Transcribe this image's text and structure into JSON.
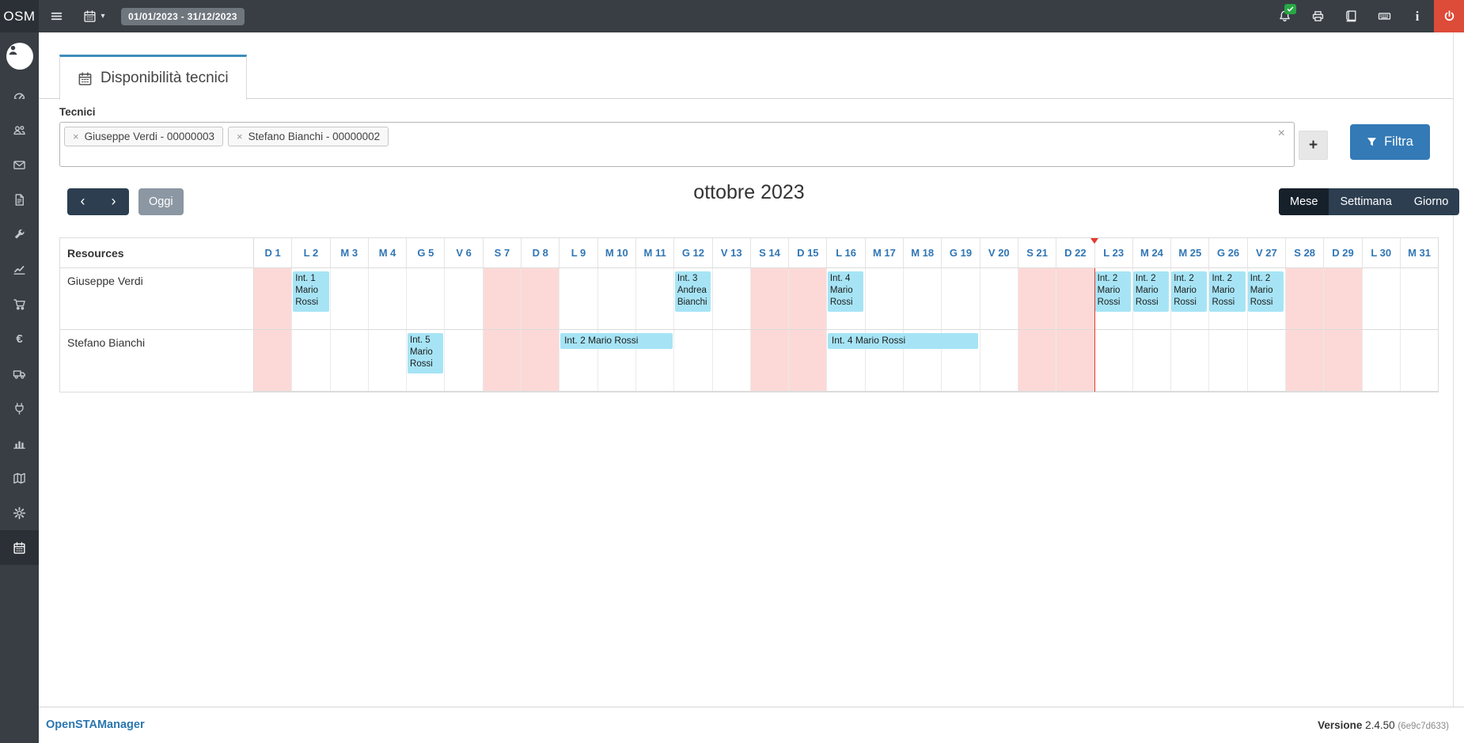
{
  "colors": {
    "navbar": "#383e44",
    "navbar_dark": "#2b3036",
    "accent": "#3c8dbc",
    "event": "#a6e4f5",
    "weekend": "#fcd9d7",
    "today": "#e23b2e",
    "logout": "#dd4b39",
    "badge_green": "#28a745"
  },
  "topbar": {
    "logo": "OSM",
    "date_range": "01/01/2023 - 31/12/2023",
    "right_icons": [
      "bell-icon",
      "print-icon",
      "book-icon",
      "keyboard-icon",
      "info-icon"
    ],
    "notification_badge": "check"
  },
  "sidebar": {
    "items": [
      {
        "id": "dashboard",
        "icon": "dashboard-icon"
      },
      {
        "id": "anagrafiche",
        "icon": "users-icon"
      },
      {
        "id": "email",
        "icon": "envelope-icon"
      },
      {
        "id": "documenti",
        "icon": "file-icon"
      },
      {
        "id": "interventi",
        "icon": "wrench-icon"
      },
      {
        "id": "andamento",
        "icon": "chart-line-icon"
      },
      {
        "id": "ordini",
        "icon": "cart-icon"
      },
      {
        "id": "fatture",
        "icon": "euro-icon"
      },
      {
        "id": "ddt",
        "icon": "truck-icon"
      },
      {
        "id": "impianti",
        "icon": "plug-icon"
      },
      {
        "id": "statistiche",
        "icon": "bar-chart-icon"
      },
      {
        "id": "mappa",
        "icon": "map-icon"
      },
      {
        "id": "impostazioni",
        "icon": "gear-icon"
      },
      {
        "id": "disponibilita",
        "icon": "calendar-icon",
        "active": true
      }
    ]
  },
  "tab": {
    "title": "Disponibilità tecnici"
  },
  "filter": {
    "label": "Tecnici",
    "tags": [
      "Giuseppe Verdi - 00000003",
      "Stefano Bianchi - 00000002"
    ],
    "tag_remove": "×",
    "clear": "×",
    "add_label": "+",
    "filter_label": "Filtra"
  },
  "toolbar": {
    "prev": "‹",
    "next": "›",
    "today_label": "Oggi",
    "title": "ottobre 2023",
    "views": [
      {
        "label": "Mese",
        "active": true
      },
      {
        "label": "Settimana",
        "active": false
      },
      {
        "label": "Giorno",
        "active": false
      }
    ]
  },
  "calendar": {
    "resources_header": "Resources",
    "today_index": 22,
    "days": [
      {
        "label": "D 1",
        "weekend": true
      },
      {
        "label": "L 2",
        "weekend": false
      },
      {
        "label": "M 3",
        "weekend": false
      },
      {
        "label": "M 4",
        "weekend": false
      },
      {
        "label": "G 5",
        "weekend": false
      },
      {
        "label": "V 6",
        "weekend": false
      },
      {
        "label": "S 7",
        "weekend": true
      },
      {
        "label": "D 8",
        "weekend": true
      },
      {
        "label": "L 9",
        "weekend": false
      },
      {
        "label": "M 10",
        "weekend": false
      },
      {
        "label": "M 11",
        "weekend": false
      },
      {
        "label": "G 12",
        "weekend": false
      },
      {
        "label": "V 13",
        "weekend": false
      },
      {
        "label": "S 14",
        "weekend": true
      },
      {
        "label": "D 15",
        "weekend": true
      },
      {
        "label": "L 16",
        "weekend": false
      },
      {
        "label": "M 17",
        "weekend": false
      },
      {
        "label": "M 18",
        "weekend": false
      },
      {
        "label": "G 19",
        "weekend": false
      },
      {
        "label": "V 20",
        "weekend": false
      },
      {
        "label": "S 21",
        "weekend": true
      },
      {
        "label": "D 22",
        "weekend": true
      },
      {
        "label": "L 23",
        "weekend": false
      },
      {
        "label": "M 24",
        "weekend": false
      },
      {
        "label": "M 25",
        "weekend": false
      },
      {
        "label": "G 26",
        "weekend": false
      },
      {
        "label": "V 27",
        "weekend": false
      },
      {
        "label": "S 28",
        "weekend": true
      },
      {
        "label": "D 29",
        "weekend": true
      },
      {
        "label": "L 30",
        "weekend": false
      },
      {
        "label": "M 31",
        "weekend": false
      }
    ],
    "resources": [
      {
        "name": "Giuseppe Verdi",
        "events": [
          {
            "day": 1,
            "span": 1,
            "text": "Int. 1 Mario Rossi",
            "tall": true
          },
          {
            "day": 11,
            "span": 1,
            "text": "Int. 3 Andrea Bianchi",
            "tall": true
          },
          {
            "day": 15,
            "span": 1,
            "text": "Int. 4 Mario Rossi",
            "tall": true
          },
          {
            "day": 22,
            "span": 1,
            "text": "Int. 2 Mario Rossi",
            "tall": true
          },
          {
            "day": 23,
            "span": 1,
            "text": "Int. 2 Mario Rossi",
            "tall": true
          },
          {
            "day": 24,
            "span": 1,
            "text": "Int. 2 Mario Rossi",
            "tall": true
          },
          {
            "day": 25,
            "span": 1,
            "text": "Int. 2 Mario Rossi",
            "tall": true
          },
          {
            "day": 26,
            "span": 1,
            "text": "Int. 2 Mario Rossi",
            "tall": true
          }
        ]
      },
      {
        "name": "Stefano Bianchi",
        "events": [
          {
            "day": 4,
            "span": 1,
            "text": "Int. 5 Mario Rossi",
            "tall": true
          },
          {
            "day": 8,
            "span": 3,
            "text": "Int. 2 Mario Rossi",
            "tall": false
          },
          {
            "day": 15,
            "span": 4,
            "text": "Int. 4 Mario Rossi",
            "tall": false
          }
        ]
      }
    ]
  },
  "footer": {
    "brand": "OpenSTAManager",
    "version_label": "Versione",
    "version": "2.4.50",
    "build": "(6e9c7d633)"
  }
}
